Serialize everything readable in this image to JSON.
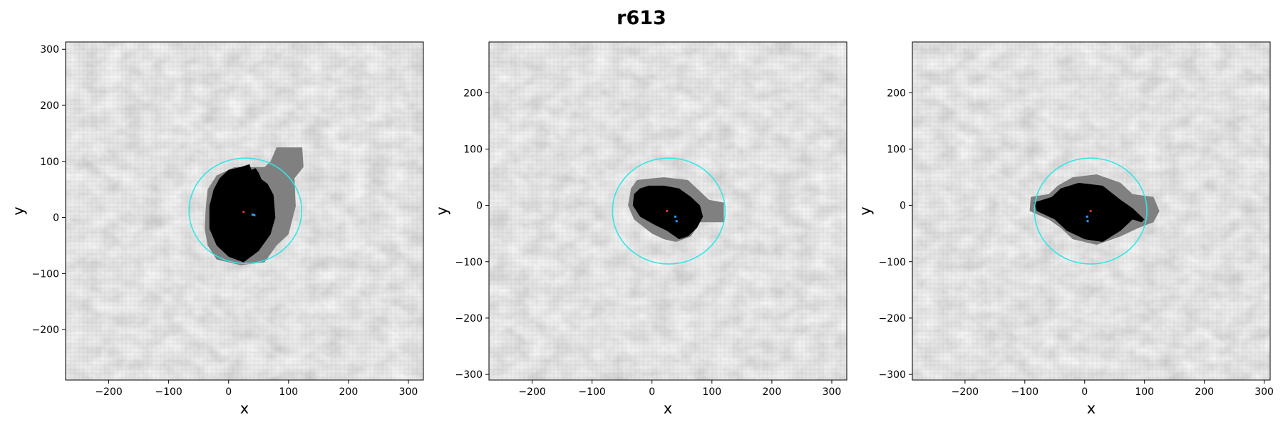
{
  "figure": {
    "title": "r613"
  },
  "colors": {
    "background_light": "#d9d9d9",
    "background_dark": "#b8b8b8",
    "mask_outer": "#808080",
    "mask_inner": "#000000",
    "circle": "#33e6e6",
    "center_red": "#e03030",
    "center_blue": "#3399ff"
  },
  "chart_data": [
    {
      "type": "image",
      "title": "",
      "xlabel": "x",
      "ylabel": "y",
      "xlim": [
        -272,
        325
      ],
      "ylim": [
        -290,
        313
      ],
      "xticks": [
        -200,
        -100,
        0,
        100,
        200,
        300
      ],
      "yticks": [
        -200,
        -100,
        0,
        100,
        200,
        300
      ],
      "xtick_labels": [
        "−200",
        "−100",
        "0",
        "100",
        "200",
        "300"
      ],
      "ytick_labels": [
        "−200",
        "−100",
        "0",
        "100",
        "200",
        "300"
      ],
      "circle": {
        "cx": 28,
        "cy": 12,
        "r": 94
      },
      "red_marker": [
        25,
        10
      ],
      "blue_markers": [
        [
          40,
          5
        ],
        [
          43,
          4
        ]
      ],
      "outer_region": [
        [
          -20,
          75
        ],
        [
          -35,
          50
        ],
        [
          -38,
          20
        ],
        [
          -40,
          -20
        ],
        [
          -35,
          -50
        ],
        [
          -20,
          -75
        ],
        [
          20,
          -85
        ],
        [
          60,
          -80
        ],
        [
          80,
          -50
        ],
        [
          100,
          -30
        ],
        [
          112,
          20
        ],
        [
          110,
          70
        ],
        [
          125,
          90
        ],
        [
          123,
          125
        ],
        [
          80,
          125
        ],
        [
          70,
          100
        ],
        [
          60,
          90
        ],
        [
          30,
          90
        ],
        [
          10,
          90
        ]
      ],
      "inner_region": [
        [
          -15,
          70
        ],
        [
          -25,
          50
        ],
        [
          -32,
          20
        ],
        [
          -32,
          -20
        ],
        [
          -20,
          -50
        ],
        [
          0,
          -70
        ],
        [
          25,
          -80
        ],
        [
          50,
          -60
        ],
        [
          70,
          -30
        ],
        [
          78,
          0
        ],
        [
          75,
          40
        ],
        [
          65,
          60
        ],
        [
          55,
          68
        ],
        [
          50,
          80
        ],
        [
          45,
          88
        ],
        [
          38,
          85
        ],
        [
          35,
          95
        ],
        [
          20,
          90
        ],
        [
          0,
          85
        ]
      ]
    },
    {
      "type": "image",
      "title": "",
      "xlabel": "x",
      "ylabel": "y",
      "xlim": [
        -272,
        325
      ],
      "ylim": [
        -310,
        290
      ],
      "xticks": [
        -200,
        -100,
        0,
        100,
        200,
        300
      ],
      "yticks": [
        -300,
        -200,
        -100,
        0,
        100,
        200
      ],
      "xtick_labels": [
        "−200",
        "−100",
        "0",
        "100",
        "200",
        "300"
      ],
      "ytick_labels": [
        "−300",
        "−200",
        "−100",
        "0",
        "100",
        "200"
      ],
      "circle": {
        "cx": 28,
        "cy": -10,
        "r": 94
      },
      "red_marker": [
        25,
        -10
      ],
      "blue_markers": [
        [
          39,
          -20
        ],
        [
          41,
          -28
        ]
      ],
      "outer_region": [
        [
          -35,
          30
        ],
        [
          -40,
          0
        ],
        [
          -30,
          -25
        ],
        [
          0,
          -50
        ],
        [
          20,
          -60
        ],
        [
          40,
          -65
        ],
        [
          65,
          -55
        ],
        [
          80,
          -30
        ],
        [
          120,
          -30
        ],
        [
          120,
          5
        ],
        [
          95,
          10
        ],
        [
          80,
          25
        ],
        [
          60,
          45
        ],
        [
          20,
          50
        ],
        [
          0,
          48
        ],
        [
          -25,
          45
        ]
      ],
      "inner_region": [
        [
          -30,
          20
        ],
        [
          -32,
          0
        ],
        [
          -20,
          -20
        ],
        [
          5,
          -35
        ],
        [
          25,
          -45
        ],
        [
          45,
          -60
        ],
        [
          60,
          -55
        ],
        [
          75,
          -40
        ],
        [
          85,
          -20
        ],
        [
          80,
          0
        ],
        [
          65,
          15
        ],
        [
          45,
          30
        ],
        [
          20,
          35
        ],
        [
          -5,
          35
        ],
        [
          -20,
          30
        ]
      ]
    },
    {
      "type": "image",
      "title": "",
      "xlabel": "x",
      "ylabel": "y",
      "xlim": [
        -288,
        310
      ],
      "ylim": [
        -310,
        290
      ],
      "xticks": [
        -200,
        -100,
        0,
        100,
        200,
        300
      ],
      "yticks": [
        -300,
        -200,
        -100,
        0,
        100,
        200
      ],
      "xtick_labels": [
        "−200",
        "−100",
        "0",
        "100",
        "200",
        "300"
      ],
      "ytick_labels": [
        "−300",
        "−200",
        "−100",
        "0",
        "100",
        "200"
      ],
      "circle": {
        "cx": 10,
        "cy": -10,
        "r": 94
      },
      "red_marker": [
        10,
        -10
      ],
      "blue_markers": [
        [
          4,
          -20
        ],
        [
          5,
          -28
        ]
      ],
      "outer_region": [
        [
          -60,
          20
        ],
        [
          -90,
          15
        ],
        [
          -92,
          -10
        ],
        [
          -60,
          -25
        ],
        [
          -40,
          -40
        ],
        [
          -20,
          -60
        ],
        [
          20,
          -70
        ],
        [
          60,
          -55
        ],
        [
          90,
          -40
        ],
        [
          115,
          -30
        ],
        [
          125,
          -10
        ],
        [
          115,
          15
        ],
        [
          80,
          20
        ],
        [
          60,
          40
        ],
        [
          20,
          55
        ],
        [
          -20,
          50
        ],
        [
          -45,
          35
        ]
      ],
      "inner_region": [
        [
          -55,
          15
        ],
        [
          -85,
          5
        ],
        [
          -80,
          -10
        ],
        [
          -50,
          -25
        ],
        [
          -30,
          -45
        ],
        [
          0,
          -60
        ],
        [
          30,
          -65
        ],
        [
          60,
          -45
        ],
        [
          80,
          -25
        ],
        [
          95,
          -30
        ],
        [
          100,
          -25
        ],
        [
          80,
          -5
        ],
        [
          60,
          10
        ],
        [
          30,
          35
        ],
        [
          -10,
          40
        ],
        [
          -40,
          30
        ]
      ]
    }
  ]
}
